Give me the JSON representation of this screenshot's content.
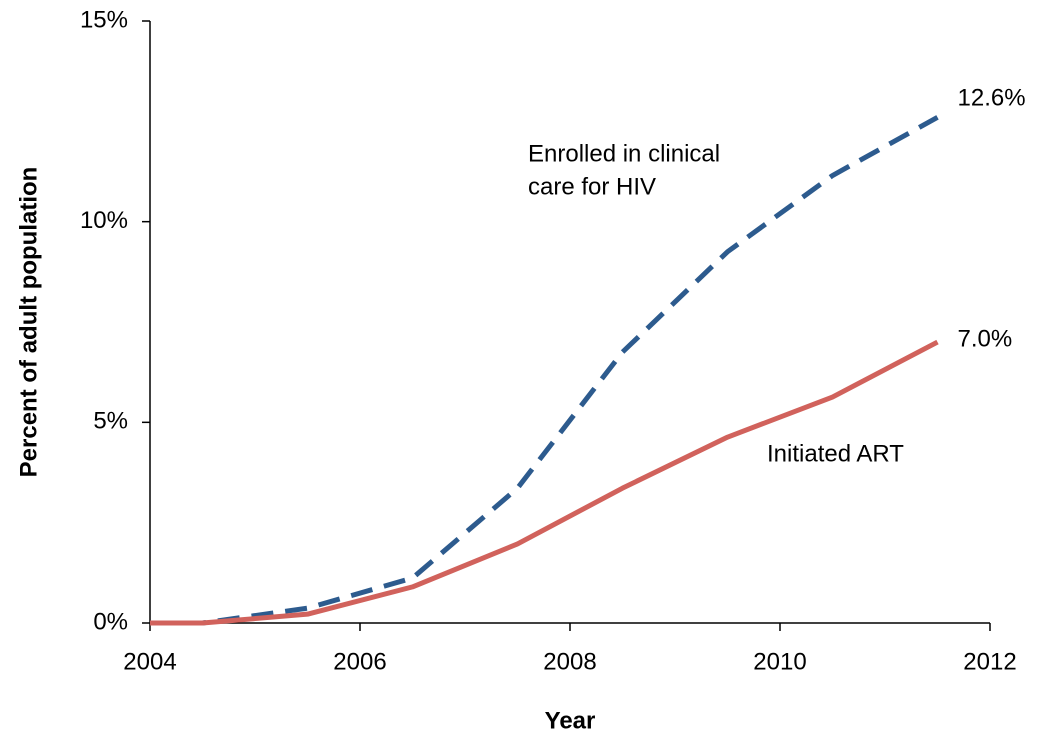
{
  "chart_data": {
    "type": "line",
    "x_label": "Year",
    "y_label": "Percent of adult population",
    "xlim": [
      2004,
      2012
    ],
    "xticks": [
      2004,
      2006,
      2008,
      2010,
      2012
    ],
    "ylim": [
      0,
      15
    ],
    "yticks": [
      {
        "value": 0,
        "label": "0%"
      },
      {
        "value": 5,
        "label": "5%"
      },
      {
        "value": 10,
        "label": "10%"
      },
      {
        "value": 15,
        "label": "15%"
      }
    ],
    "x": [
      2004,
      2004.5,
      2005.5,
      2006.5,
      2007.5,
      2008.5,
      2009.5,
      2010.5,
      2011.5
    ],
    "series": [
      {
        "name": [
          "Enrolled in clinical",
          "care for HIV"
        ],
        "color": "#2d5b8e",
        "dashed": true,
        "values": [
          0,
          0,
          0.37,
          1.12,
          3.36,
          6.75,
          9.25,
          11.15,
          12.6
        ],
        "value_labels": [
          null,
          null,
          null,
          null,
          null,
          null,
          null,
          null,
          "12.6%"
        ]
      },
      {
        "name": [
          "Initiated ART"
        ],
        "color": "#d1625c",
        "dashed": false,
        "values": [
          0,
          0,
          0.22,
          0.9,
          1.97,
          3.36,
          4.63,
          5.63,
          7.0
        ],
        "value_labels": [
          null,
          null,
          null,
          null,
          null,
          null,
          null,
          null,
          "7.0%"
        ]
      }
    ]
  }
}
